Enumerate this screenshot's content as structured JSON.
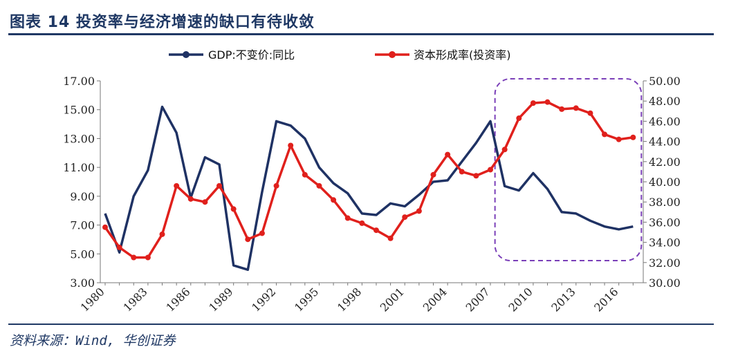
{
  "header": {
    "title": "图表 14   投资率与经济增速的缺口有待收敛"
  },
  "footer": {
    "source": "资料来源：Wind, 华创证券"
  },
  "chart_data": {
    "type": "line",
    "x": [
      1980,
      1981,
      1982,
      1983,
      1984,
      1985,
      1986,
      1987,
      1988,
      1989,
      1990,
      1991,
      1992,
      1993,
      1994,
      1995,
      1996,
      1997,
      1998,
      1999,
      2000,
      2001,
      2002,
      2003,
      2004,
      2005,
      2006,
      2007,
      2008,
      2009,
      2010,
      2011,
      2012,
      2013,
      2014,
      2015,
      2016,
      2017
    ],
    "xticks": [
      "1980",
      "1983",
      "1986",
      "1989",
      "1992",
      "1995",
      "1998",
      "2001",
      "2004",
      "2007",
      "2010",
      "2013",
      "2016"
    ],
    "yticks_left": [
      "17.00",
      "15.00",
      "13.00",
      "11.00",
      "9.00",
      "7.00",
      "5.00",
      "3.00"
    ],
    "yticks_right": [
      "50.00",
      "48.00",
      "46.00",
      "44.00",
      "42.00",
      "40.00",
      "38.00",
      "36.00",
      "34.00",
      "32.00",
      "30.00"
    ],
    "ylim_left": [
      3,
      17
    ],
    "ylim_right": [
      30,
      50
    ],
    "series": [
      {
        "name": "GDP:不变价:同比",
        "axis": "left",
        "color": "#1f3264",
        "values": [
          7.8,
          5.1,
          9.0,
          10.8,
          15.2,
          13.4,
          8.9,
          11.7,
          11.2,
          4.2,
          3.9,
          9.3,
          14.2,
          13.9,
          13.0,
          11.0,
          9.9,
          9.2,
          7.8,
          7.7,
          8.5,
          8.3,
          9.1,
          10.0,
          10.1,
          11.4,
          12.7,
          14.2,
          9.7,
          9.4,
          10.6,
          9.5,
          7.9,
          7.8,
          7.3,
          6.9,
          6.7,
          6.9
        ]
      },
      {
        "name": "资本形成率(投资率)",
        "axis": "right",
        "color": "#e0201c",
        "values": [
          35.5,
          33.5,
          32.5,
          32.5,
          34.8,
          39.6,
          38.3,
          38.0,
          39.6,
          37.3,
          34.3,
          34.9,
          39.6,
          43.6,
          40.7,
          39.6,
          38.2,
          36.4,
          35.9,
          35.2,
          34.4,
          36.5,
          37.1,
          40.7,
          42.7,
          41.0,
          40.6,
          41.2,
          43.2,
          46.3,
          47.8,
          47.9,
          47.2,
          47.3,
          46.8,
          44.7,
          44.2,
          44.4
        ]
      }
    ],
    "annotation": {
      "from_year": 2008,
      "to_year": 2017
    },
    "legend": "top"
  }
}
